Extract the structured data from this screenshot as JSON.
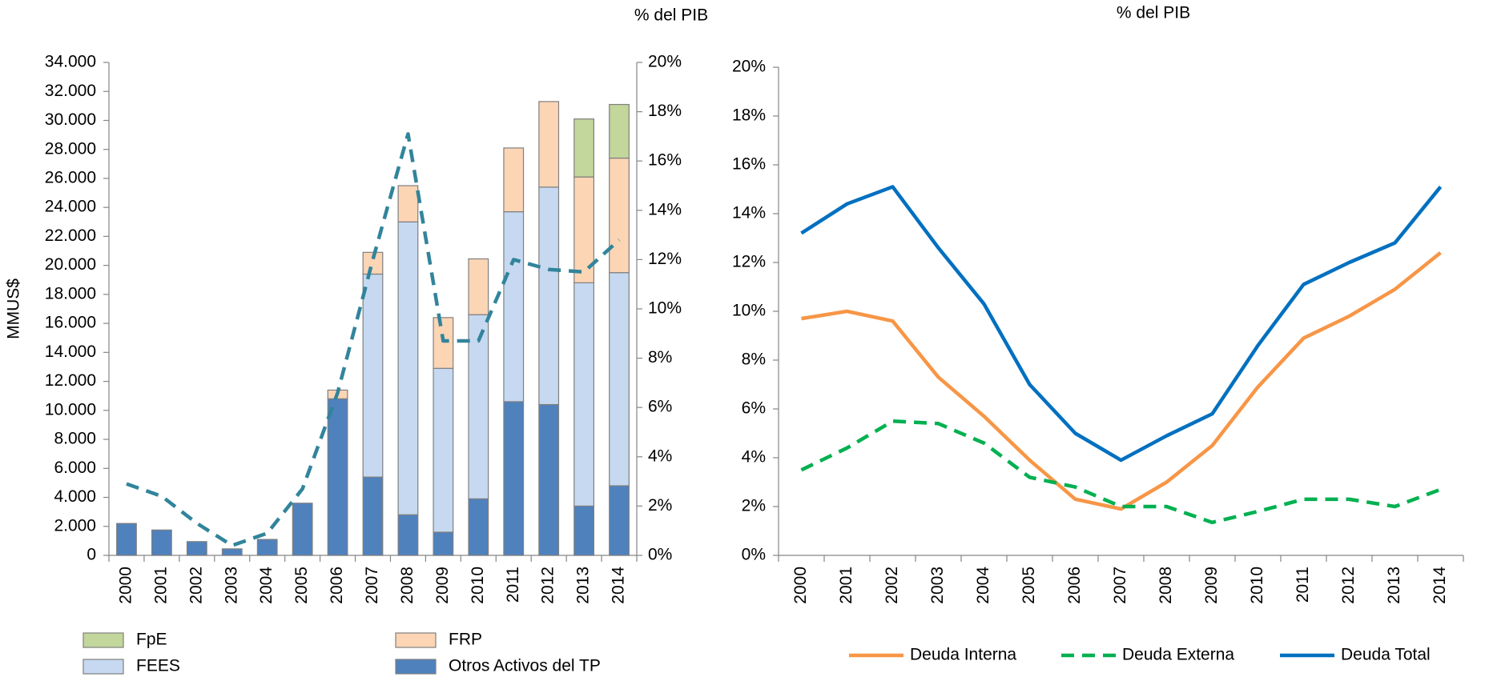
{
  "chart_data": [
    {
      "type": "bar",
      "stacked": true,
      "ylabel": "MMUS$",
      "y2label": "% del PIB",
      "categories": [
        "2000",
        "2001",
        "2002",
        "2003",
        "2004",
        "2005",
        "2006",
        "2007",
        "2008",
        "2009",
        "2010",
        "2011",
        "2012",
        "2013",
        "2014"
      ],
      "series": [
        {
          "name": "Otros Activos del TP",
          "color": "#4f81bd",
          "values": [
            2200,
            1750,
            950,
            450,
            1100,
            3600,
            10800,
            5400,
            2800,
            1600,
            3900,
            10600,
            10400,
            3400,
            4800
          ]
        },
        {
          "name": "FEES",
          "color": "#c6d9f1",
          "values": [
            0,
            0,
            0,
            0,
            0,
            0,
            0,
            14000,
            20200,
            11300,
            12700,
            13100,
            15000,
            15400,
            14700
          ]
        },
        {
          "name": "FRP",
          "color": "#fcd5b5",
          "values": [
            0,
            0,
            0,
            0,
            0,
            0,
            600,
            1500,
            2500,
            3500,
            3850,
            4400,
            5900,
            7300,
            7900
          ]
        },
        {
          "name": "FpE",
          "color": "#c3d69b",
          "values": [
            0,
            0,
            0,
            0,
            0,
            0,
            0,
            0,
            0,
            0,
            0,
            0,
            0,
            4000,
            3700
          ]
        },
        {
          "type": "line",
          "axis": "y2",
          "dashed": true,
          "color": "#31849b",
          "values": [
            2.9,
            2.4,
            1.3,
            0.4,
            0.9,
            2.7,
            6.6,
            12.0,
            17.1,
            8.7,
            8.7,
            12.0,
            11.6,
            11.5,
            12.8
          ]
        }
      ],
      "ylim": [
        0,
        34000
      ],
      "yticks": [
        0,
        {
          "value": 2000,
          "label": "2.000"
        },
        {
          "value": 4000,
          "label": "4.000"
        },
        {
          "value": 6000,
          "label": "6.000"
        },
        {
          "value": 8000,
          "label": "8.000"
        },
        {
          "value": 10000,
          "label": "10.000"
        },
        {
          "value": 12000,
          "label": "12.000"
        },
        {
          "value": 14000,
          "label": "14.000"
        },
        {
          "value": 16000,
          "label": "16.000"
        },
        {
          "value": 18000,
          "label": "18.000"
        },
        {
          "value": 20000,
          "label": "20.000"
        },
        {
          "value": 22000,
          "label": "22.000"
        },
        {
          "value": 24000,
          "label": "24.000"
        },
        {
          "value": 26000,
          "label": "26.000"
        },
        {
          "value": 28000,
          "label": "28.000"
        },
        {
          "value": 30000,
          "label": "30.000"
        },
        {
          "value": 32000,
          "label": "32.000"
        },
        {
          "value": 34000,
          "label": "34.000"
        }
      ],
      "y2lim": [
        0,
        20
      ],
      "y2ticks": [
        {
          "value": 0,
          "label": "0%"
        },
        {
          "value": 2,
          "label": "2%"
        },
        {
          "value": 4,
          "label": "4%"
        },
        {
          "value": 6,
          "label": "6%"
        },
        {
          "value": 8,
          "label": "8%"
        },
        {
          "value": 10,
          "label": "10%"
        },
        {
          "value": 12,
          "label": "12%"
        },
        {
          "value": 14,
          "label": "14%"
        },
        {
          "value": 16,
          "label": "16%"
        },
        {
          "value": 18,
          "label": "18%"
        },
        {
          "value": 20,
          "label": "20%"
        }
      ],
      "legend": "bottom",
      "grid": false
    },
    {
      "type": "line",
      "title": "% del PIB",
      "categories": [
        "2000",
        "2001",
        "2002",
        "2003",
        "2004",
        "2005",
        "2006",
        "2007",
        "2008",
        "2009",
        "2010",
        "2011",
        "2012",
        "2013",
        "2014"
      ],
      "series": [
        {
          "name": "Deuda Interna",
          "color": "#f79646",
          "dashed": false,
          "values": [
            9.7,
            10.0,
            9.6,
            7.3,
            5.7,
            3.9,
            2.3,
            1.9,
            3.0,
            4.5,
            6.9,
            8.9,
            9.8,
            10.9,
            12.4
          ]
        },
        {
          "name": "Deuda Externa",
          "color": "#00b050",
          "dashed": true,
          "values": [
            3.5,
            4.4,
            5.5,
            5.4,
            4.6,
            3.2,
            2.8,
            2.0,
            2.0,
            1.35,
            1.8,
            2.3,
            2.3,
            2.0,
            2.7
          ]
        },
        {
          "name": "Deuda Total",
          "color": "#0070c0",
          "dashed": false,
          "values": [
            13.2,
            14.4,
            15.1,
            12.6,
            10.3,
            7.0,
            5.0,
            3.9,
            4.9,
            5.8,
            8.6,
            11.1,
            12.0,
            12.8,
            15.1
          ]
        }
      ],
      "ylim": [
        0,
        20
      ],
      "yticks": [
        {
          "value": 0,
          "label": "0%"
        },
        {
          "value": 2,
          "label": "2%"
        },
        {
          "value": 4,
          "label": "4%"
        },
        {
          "value": 6,
          "label": "6%"
        },
        {
          "value": 8,
          "label": "8%"
        },
        {
          "value": 10,
          "label": "10%"
        },
        {
          "value": 12,
          "label": "12%"
        },
        {
          "value": 14,
          "label": "14%"
        },
        {
          "value": 16,
          "label": "16%"
        },
        {
          "value": 18,
          "label": "18%"
        },
        {
          "value": 20,
          "label": "20%"
        }
      ],
      "legend": "bottom",
      "grid": false
    }
  ]
}
